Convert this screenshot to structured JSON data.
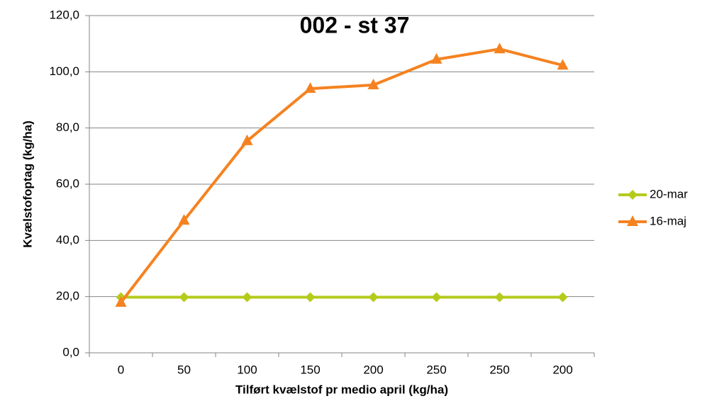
{
  "chart_data": {
    "type": "line",
    "title": "002 - st 37",
    "x_label": "Tilført kvælstof pr medio april (kg/ha)",
    "y_label": "Kvælstofoptag (kg/ha)",
    "categories": [
      "0",
      "50",
      "100",
      "150",
      "200",
      "250",
      "250",
      "200"
    ],
    "series": [
      {
        "name": "20-mar",
        "color": "#b5cb1b",
        "marker": "diamond",
        "values": [
          19.8,
          19.8,
          19.8,
          19.8,
          19.8,
          19.8,
          19.8,
          19.8
        ]
      },
      {
        "name": "16-maj",
        "color": "#f58220",
        "marker": "triangle",
        "values": [
          17.9,
          47.1,
          75.4,
          94.0,
          95.3,
          104.4,
          108.1,
          102.3
        ]
      }
    ],
    "ylim": [
      0,
      120
    ],
    "yticks": [
      {
        "value": 0,
        "label": "0,0"
      },
      {
        "value": 20,
        "label": "20,0"
      },
      {
        "value": 40,
        "label": "40,0"
      },
      {
        "value": 60,
        "label": "60,0"
      },
      {
        "value": 80,
        "label": "80,0"
      },
      {
        "value": 100,
        "label": "100,0"
      },
      {
        "value": 120,
        "label": "120,0"
      }
    ],
    "grid": true,
    "legend": "right"
  }
}
